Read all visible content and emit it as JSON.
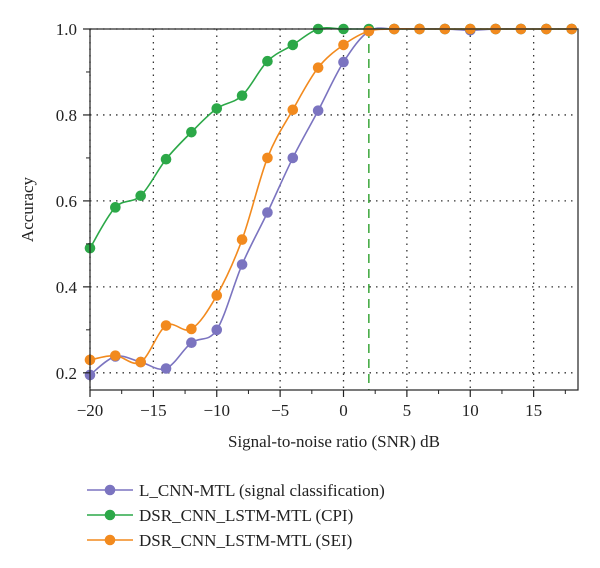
{
  "chart_data": {
    "type": "line",
    "xlabel": "Signal-to-noise ratio (SNR) dB",
    "ylabel": "Accuracy",
    "xlim": [
      -20,
      18.5
    ],
    "ylim": [
      0.16,
      1.0
    ],
    "xticks": [
      -20,
      -15,
      -10,
      -5,
      0,
      5,
      10,
      15
    ],
    "xtick_labels": [
      "−20",
      "−15",
      "−10",
      "−5",
      "0",
      "5",
      "10",
      "15"
    ],
    "yticks": [
      0.2,
      0.4,
      0.6,
      0.8,
      1.0
    ],
    "ytick_labels": [
      "0.2",
      "0.4",
      "0.6",
      "0.8",
      "1.0"
    ],
    "grid": true,
    "grid_style": "dotted",
    "vertical_reference_line": {
      "x": 2,
      "style": "dashed",
      "color": "#2ca02c"
    },
    "legend_position": "below",
    "x": [
      -20,
      -18,
      -16,
      -14,
      -12,
      -10,
      -8,
      -6,
      -4,
      -2,
      0,
      2,
      4,
      6,
      8,
      10,
      12,
      14,
      16,
      18
    ],
    "series": [
      {
        "name": "L_CNN-MTL (signal classification)",
        "color": "#7b74c0",
        "values": [
          0.195,
          0.238,
          0.225,
          0.21,
          0.27,
          0.3,
          0.452,
          0.573,
          0.7,
          0.81,
          0.923,
          0.995,
          1.0,
          1.0,
          1.0,
          0.997,
          1.0,
          1.0,
          1.0,
          1.0
        ]
      },
      {
        "name": "DSR_CNN_LSTM-MTL (CPI)",
        "color": "#2ca848",
        "values": [
          0.49,
          0.585,
          0.612,
          0.697,
          0.76,
          0.815,
          0.845,
          0.925,
          0.963,
          1.0,
          1.0,
          1.0,
          1.0,
          1.0,
          1.0,
          1.0,
          1.0,
          1.0,
          1.0,
          1.0
        ]
      },
      {
        "name": "DSR_CNN_LSTM-MTL (SEI)",
        "color": "#f28a1e",
        "values": [
          0.23,
          0.24,
          0.225,
          0.31,
          0.302,
          0.38,
          0.51,
          0.7,
          0.812,
          0.91,
          0.963,
          0.995,
          1.0,
          1.0,
          1.0,
          1.0,
          1.0,
          1.0,
          1.0,
          1.0
        ]
      }
    ]
  }
}
